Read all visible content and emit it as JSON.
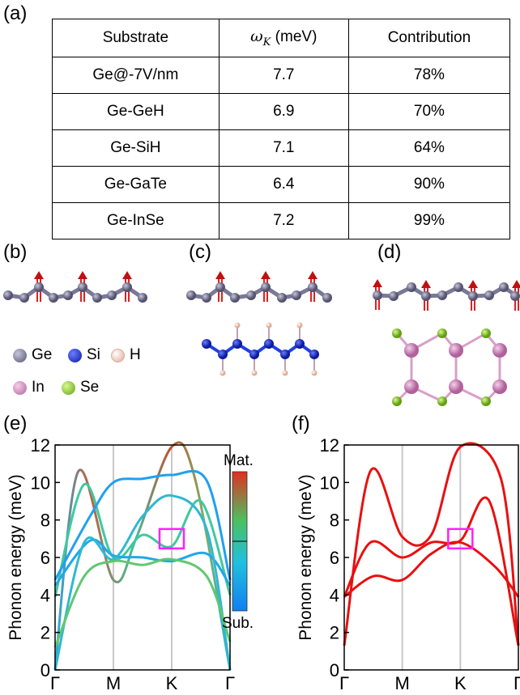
{
  "panels": {
    "a": "(a)",
    "b": "(b)",
    "c": "(c)",
    "d": "(d)",
    "e": "(e)",
    "f": "(f)"
  },
  "table": {
    "headers": [
      "Substrate",
      "ω",
      "K",
      " (meV)",
      "Contribution"
    ],
    "rows": [
      {
        "substrate": "Ge@-7V/nm",
        "omega": "7.7",
        "contribution": "78%"
      },
      {
        "substrate": "Ge-GeH",
        "omega": "6.9",
        "contribution": "70%"
      },
      {
        "substrate": "Ge-SiH",
        "omega": "7.1",
        "contribution": "64%"
      },
      {
        "substrate": "Ge-GaTe",
        "omega": "6.4",
        "contribution": "90%"
      },
      {
        "substrate": "Ge-InSe",
        "omega": "7.2",
        "contribution": "99%"
      }
    ]
  },
  "legend": {
    "ge": "Ge",
    "si": "Si",
    "h": "H",
    "in": "In",
    "se": "Se",
    "colors": {
      "ge": "#6f6c8c",
      "si": "#1a2fd0",
      "h": "#f0c8b8",
      "in": "#d48cc0",
      "se": "#8cd020"
    }
  },
  "chart_data": [
    {
      "type": "line",
      "ylabel": "Phonon energy (meV)",
      "ylim": [
        0,
        12
      ],
      "yticks": [
        "0",
        "2",
        "4",
        "6",
        "8",
        "10",
        "12"
      ],
      "xticks": [
        "Γ",
        "M",
        "K",
        "Γ"
      ],
      "colorbar": {
        "top": "Mat.",
        "bottom": "Sub.",
        "colors": [
          "#e03020",
          "#4cc060",
          "#20c0e0",
          "#1080f0"
        ]
      },
      "series": [
        {
          "values": [
            [
              0,
              0
            ],
            [
              0.4,
              10.6
            ],
            [
              1,
              4.8
            ],
            [
              1.4,
              7.1
            ],
            [
              2,
              11.9
            ],
            [
              2.4,
              10.2
            ],
            [
              3,
              0
            ]
          ]
        },
        {
          "values": [
            [
              0,
              3.9
            ],
            [
              0.5,
              9.9
            ],
            [
              1,
              6
            ],
            [
              1.5,
              7.2
            ],
            [
              2,
              6.6
            ],
            [
              2.5,
              9
            ],
            [
              3,
              4
            ]
          ]
        },
        {
          "values": [
            [
              0,
              4.5
            ],
            [
              0.6,
              6.9
            ],
            [
              1,
              6.1
            ],
            [
              1.5,
              6
            ],
            [
              2,
              5.8
            ],
            [
              2.6,
              6.2
            ],
            [
              3,
              4.5
            ]
          ]
        },
        {
          "values": [
            [
              0,
              4.8
            ],
            [
              0.6,
              8.2
            ],
            [
              1,
              10
            ],
            [
              1.5,
              10.2
            ],
            [
              2,
              10.4
            ],
            [
              2.6,
              10.1
            ],
            [
              3,
              4.8
            ]
          ]
        },
        {
          "values": [
            [
              0,
              0
            ],
            [
              0.5,
              6.8
            ],
            [
              1,
              5.9
            ],
            [
              1.5,
              8.2
            ],
            [
              2,
              9.3
            ],
            [
              2.6,
              7.5
            ],
            [
              3,
              0
            ]
          ]
        },
        {
          "values": [
            [
              0,
              1.2
            ],
            [
              0.5,
              5
            ],
            [
              1,
              5.8
            ],
            [
              1.5,
              5.6
            ],
            [
              2,
              5.9
            ],
            [
              2.6,
              5
            ],
            [
              3,
              1.5
            ]
          ]
        }
      ],
      "highlight": {
        "x": 2,
        "y": 7,
        "label": "K"
      }
    },
    {
      "type": "line",
      "ylabel": "Phonon energy (meV)",
      "ylim": [
        0,
        12
      ],
      "yticks": [
        "0",
        "2",
        "4",
        "6",
        "8",
        "10",
        "12"
      ],
      "xticks": [
        "Γ",
        "M",
        "K",
        "Γ"
      ],
      "series": [
        {
          "values": [
            [
              0,
              1.3
            ],
            [
              0.45,
              10.6
            ],
            [
              1,
              7.1
            ],
            [
              1.5,
              7.2
            ],
            [
              2,
              11.9
            ],
            [
              2.7,
              10.2
            ],
            [
              3,
              1.3
            ]
          ]
        },
        {
          "values": [
            [
              0,
              3.9
            ],
            [
              0.45,
              6.8
            ],
            [
              1,
              6
            ],
            [
              1.5,
              6.8
            ],
            [
              2,
              6.9
            ],
            [
              2.5,
              9
            ],
            [
              3,
              1.3
            ]
          ]
        },
        {
          "values": [
            [
              0,
              3.9
            ],
            [
              0.5,
              5
            ],
            [
              1,
              4.8
            ],
            [
              1.5,
              6.2
            ],
            [
              2,
              6.8
            ],
            [
              2.6,
              5.5
            ],
            [
              3,
              3.9
            ]
          ]
        }
      ],
      "highlight": {
        "x": 2,
        "y": 7,
        "label": "K"
      }
    }
  ]
}
